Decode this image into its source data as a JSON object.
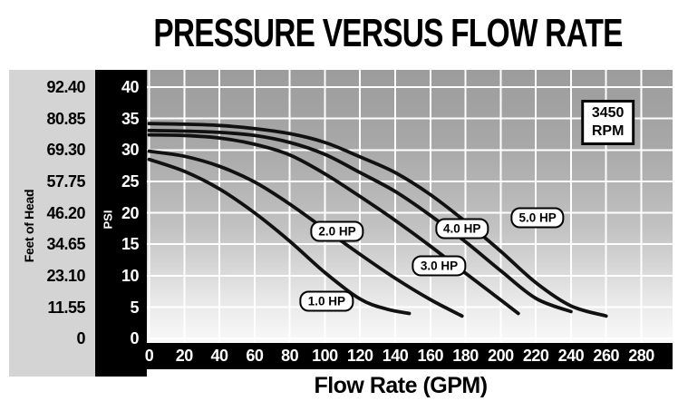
{
  "page": {
    "title": "PRESSURE VERSUS FLOW RATE"
  },
  "colors": {
    "plot_gradient_top": "#9c9c9c",
    "plot_gradient_bottom": "#f9f9f9",
    "left_axis_bg": "#d4d4d4",
    "axis_strip_bg": "#000000",
    "gridline": "#ffffff",
    "curve": "#111111",
    "label_bg": "#ffffff"
  },
  "chart_data": {
    "type": "line",
    "title": "PRESSURE VERSUS FLOW RATE",
    "xlabel": "Flow Rate (GPM)",
    "ylabel_left": "Feet of Head",
    "ylabel_right": "PSI",
    "xlim": [
      0,
      280
    ],
    "ylim_psi": [
      0,
      40
    ],
    "grid": true,
    "x_ticks": [
      0,
      20,
      40,
      60,
      80,
      100,
      120,
      140,
      160,
      180,
      200,
      220,
      240,
      260,
      280
    ],
    "y_axis_rows": [
      {
        "feet": "92.40",
        "psi": "40",
        "psi_value": 40
      },
      {
        "feet": "80.85",
        "psi": "35",
        "psi_value": 35
      },
      {
        "feet": "69.30",
        "psi": "30",
        "psi_value": 30
      },
      {
        "feet": "57.75",
        "psi": "25",
        "psi_value": 25
      },
      {
        "feet": "46.20",
        "psi": "20",
        "psi_value": 20
      },
      {
        "feet": "34.65",
        "psi": "15",
        "psi_value": 15
      },
      {
        "feet": "23.10",
        "psi": "10",
        "psi_value": 10
      },
      {
        "feet": "11.55",
        "psi": "5",
        "psi_value": 5
      },
      {
        "feet": "0",
        "psi": "0",
        "psi_value": 0
      }
    ],
    "series": [
      {
        "name": "1.0 HP",
        "points": [
          [
            0,
            28.5
          ],
          [
            20,
            26.6
          ],
          [
            40,
            23.8
          ],
          [
            60,
            20.0
          ],
          [
            80,
            15.5
          ],
          [
            100,
            10.5
          ],
          [
            120,
            6.3
          ],
          [
            135,
            4.7
          ],
          [
            148,
            4.0
          ]
        ]
      },
      {
        "name": "2.0 HP",
        "points": [
          [
            0,
            29.8
          ],
          [
            20,
            29.0
          ],
          [
            40,
            27.4
          ],
          [
            60,
            24.9
          ],
          [
            80,
            21.4
          ],
          [
            100,
            17.4
          ],
          [
            120,
            13.4
          ],
          [
            140,
            9.6
          ],
          [
            160,
            6.2
          ],
          [
            178,
            3.6
          ]
        ]
      },
      {
        "name": "3.0 HP",
        "points": [
          [
            0,
            32.4
          ],
          [
            20,
            32.3
          ],
          [
            40,
            31.9
          ],
          [
            60,
            30.9
          ],
          [
            80,
            29.2
          ],
          [
            100,
            26.2
          ],
          [
            120,
            22.6
          ],
          [
            140,
            18.8
          ],
          [
            160,
            14.7
          ],
          [
            180,
            10.4
          ],
          [
            196,
            7.0
          ],
          [
            210,
            4.0
          ]
        ]
      },
      {
        "name": "4.0 HP",
        "points": [
          [
            0,
            33.1
          ],
          [
            20,
            33.0
          ],
          [
            40,
            32.8
          ],
          [
            60,
            32.3
          ],
          [
            80,
            31.2
          ],
          [
            100,
            29.3
          ],
          [
            120,
            26.4
          ],
          [
            140,
            23.4
          ],
          [
            160,
            19.6
          ],
          [
            180,
            15.4
          ],
          [
            200,
            10.8
          ],
          [
            220,
            6.4
          ],
          [
            240,
            4.3
          ]
        ]
      },
      {
        "name": "5.0 HP",
        "points": [
          [
            0,
            34.2
          ],
          [
            20,
            34.1
          ],
          [
            40,
            33.9
          ],
          [
            60,
            33.4
          ],
          [
            80,
            32.6
          ],
          [
            100,
            31.2
          ],
          [
            120,
            28.9
          ],
          [
            140,
            26.4
          ],
          [
            160,
            22.9
          ],
          [
            180,
            18.6
          ],
          [
            200,
            13.9
          ],
          [
            220,
            8.9
          ],
          [
            240,
            5.2
          ],
          [
            260,
            3.6
          ]
        ]
      }
    ],
    "annotations": [
      {
        "text": "1.0 HP",
        "gpm": 101,
        "psi": 6.0
      },
      {
        "text": "2.0 HP",
        "gpm": 107,
        "psi": 17.0
      },
      {
        "text": "3.0 HP",
        "gpm": 165,
        "psi": 11.6
      },
      {
        "text": "4.0 HP",
        "gpm": 178,
        "psi": 17.5
      },
      {
        "text": "5.0 HP",
        "gpm": 221,
        "psi": 19.2
      }
    ],
    "rpm_badge": {
      "lines": [
        "3450",
        "RPM"
      ],
      "gpm": 261,
      "psi": 34.4
    }
  }
}
